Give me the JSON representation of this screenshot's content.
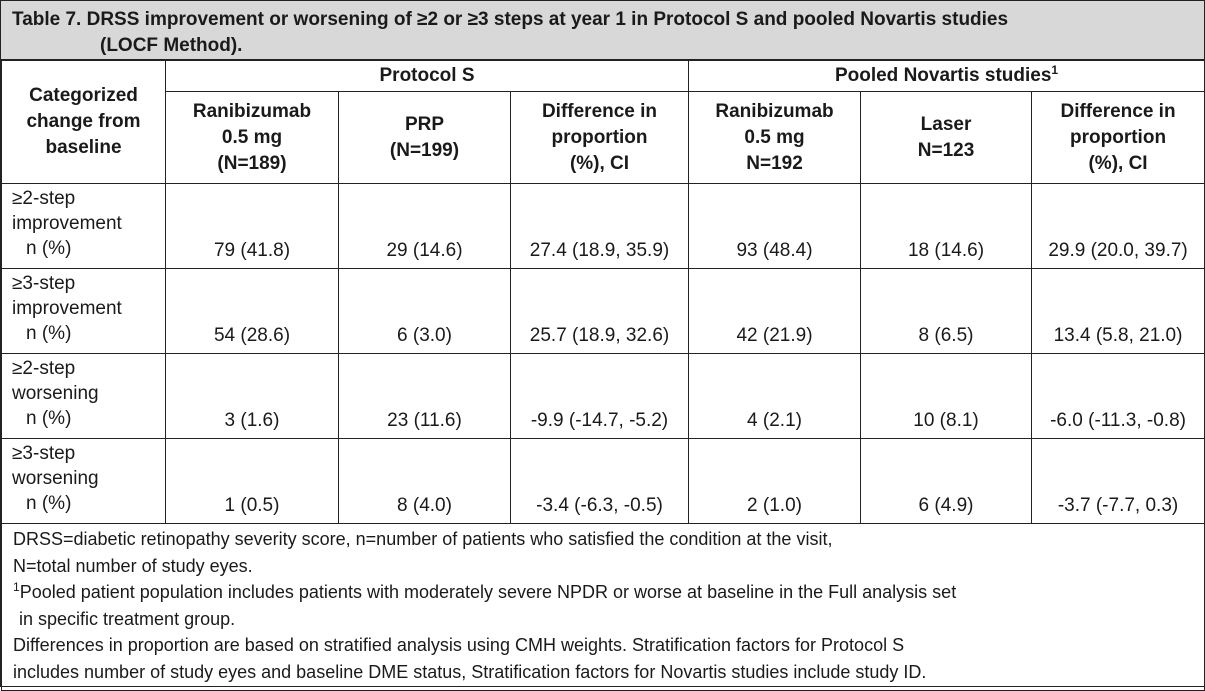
{
  "title": {
    "line1": "Table 7. DRSS improvement or worsening of ≥2 or ≥3 steps at year 1 in Protocol S and pooled Novartis studies",
    "line2": "(LOCF Method)."
  },
  "header": {
    "row_label_lines": [
      "Categorized",
      "change from",
      "baseline"
    ],
    "group_protocol_s": "Protocol S",
    "group_novartis": "Pooled Novartis studies",
    "group_novartis_sup": "1",
    "columns": [
      [
        "Ranibizumab",
        "0.5 mg",
        "(N=189)"
      ],
      [
        "PRP",
        "(N=199)"
      ],
      [
        "Difference in",
        "proportion",
        "(%), CI"
      ],
      [
        "Ranibizumab",
        "0.5 mg",
        "N=192"
      ],
      [
        "Laser",
        "N=123"
      ],
      [
        "Difference in",
        "proportion",
        "(%), CI"
      ]
    ]
  },
  "rows": [
    {
      "label": [
        "≥2-step",
        "improvement",
        "n (%)"
      ],
      "values": [
        "79 (41.8)",
        "29 (14.6)",
        "27.4 (18.9, 35.9)",
        "93 (48.4)",
        "18 (14.6)",
        "29.9 (20.0, 39.7)"
      ]
    },
    {
      "label": [
        "≥3-step",
        "improvement",
        "n (%)"
      ],
      "values": [
        "54 (28.6)",
        "6 (3.0)",
        "25.7 (18.9, 32.6)",
        "42 (21.9)",
        "8 (6.5)",
        "13.4 (5.8, 21.0)"
      ]
    },
    {
      "label": [
        "≥2-step",
        "worsening",
        "n (%)"
      ],
      "values": [
        "3 (1.6)",
        "23 (11.6)",
        "-9.9 (-14.7, -5.2)",
        "4 (2.1)",
        "10 (8.1)",
        "-6.0 (-11.3, -0.8)"
      ]
    },
    {
      "label": [
        "≥3-step",
        "worsening",
        "n (%)"
      ],
      "values": [
        "1 (0.5)",
        "8 (4.0)",
        "-3.4 (-6.3, -0.5)",
        "2 (1.0)",
        "6 (4.9)",
        "-3.7 (-7.7, 0.3)"
      ]
    }
  ],
  "footnotes": {
    "line1": "DRSS=diabetic retinopathy severity score, n=number of patients who satisfied the condition at the visit,",
    "line2": "N=total number of study eyes.",
    "note1_sup": "1",
    "note1_line1": "Pooled patient population includes patients with moderately severe NPDR or worse at baseline in the Full analysis set",
    "note1_line2": "in specific treatment group.",
    "line5": "Differences in proportion are based on stratified analysis using CMH weights. Stratification factors for Protocol S",
    "line6": "includes number of study eyes and baseline DME status, Stratification factors for Novartis studies include study ID."
  }
}
